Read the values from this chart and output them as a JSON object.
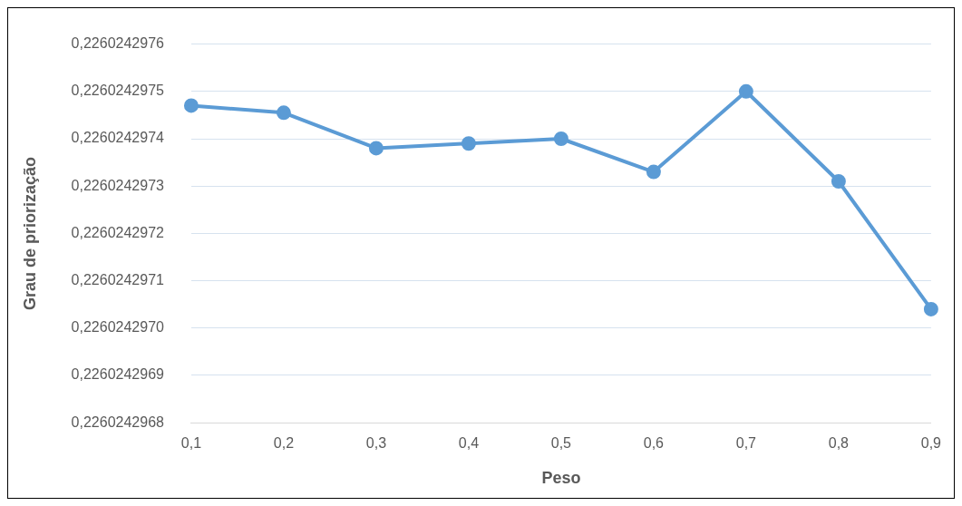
{
  "chart_data": {
    "type": "line",
    "xlabel": "Peso",
    "ylabel": "Grau de priorização",
    "categories": [
      "0,1",
      "0,2",
      "0,3",
      "0,4",
      "0,5",
      "0,6",
      "0,7",
      "0,8",
      "0,9"
    ],
    "series": [
      {
        "color": "#5b9bd5",
        "values": [
          0.22602429747,
          0.226024297455,
          0.22602429738,
          0.22602429739,
          0.2260242974,
          0.22602429733,
          0.2260242975,
          0.22602429731,
          0.22602429704
        ]
      }
    ],
    "ylim": [
      0.2260242968,
      0.2260242976
    ],
    "yticks": [
      {
        "value": 0.2260242968,
        "label": "0,2260242968"
      },
      {
        "value": 0.2260242969,
        "label": "0,2260242969"
      },
      {
        "value": 0.226024297,
        "label": "0,2260242970"
      },
      {
        "value": 0.2260242971,
        "label": "0,2260242971"
      },
      {
        "value": 0.2260242972,
        "label": "0,2260242972"
      },
      {
        "value": 0.2260242973,
        "label": "0,2260242973"
      },
      {
        "value": 0.2260242974,
        "label": "0,2260242974"
      },
      {
        "value": 0.2260242975,
        "label": "0,2260242975"
      },
      {
        "value": 0.2260242976,
        "label": "0,2260242976"
      }
    ],
    "grid": "y",
    "marker": "circle",
    "line_style": "solid",
    "legend": false
  }
}
